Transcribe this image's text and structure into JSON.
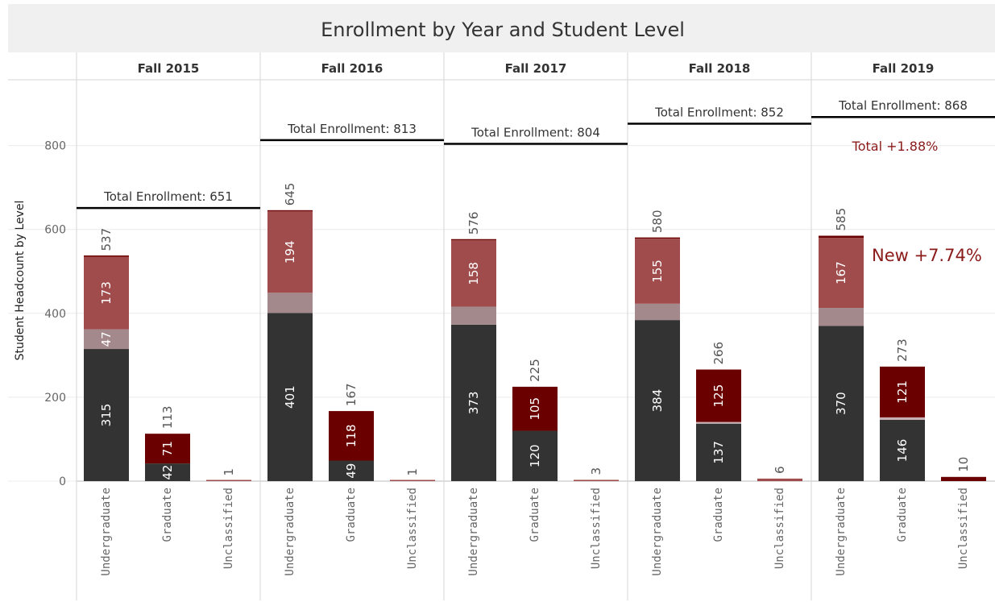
{
  "chart_data": {
    "type": "bar",
    "title": "Enrollment by Year and Student Level",
    "ylabel": "Student Headcount by Level",
    "ylim": [
      0,
      950
    ],
    "yticks": [
      0,
      200,
      400,
      600,
      800
    ],
    "grid": true,
    "levels": [
      "Undergraduate",
      "Graduate",
      "Unclassified"
    ],
    "colors": {
      "continuing": "#333333",
      "transfer": "#a4898c",
      "new_undergrad": "#a04c4c",
      "new_grad": "#6b0000",
      "graduate_mid": "#c9b0b2",
      "unclassified": "#a04c4c"
    },
    "panels": [
      {
        "year": "Fall 2015",
        "total_enrollment": 651,
        "total_label": "Total Enrollment: 651",
        "bars": [
          {
            "level": "Undergraduate",
            "total": 537,
            "segments": [
              {
                "value": 315,
                "label": "315",
                "role": "continuing"
              },
              {
                "value": 47,
                "label": "47",
                "role": "transfer"
              },
              {
                "value": 173,
                "label": "173",
                "role": "new_undergrad"
              },
              {
                "value": 2,
                "label": "",
                "role": "new_grad"
              }
            ]
          },
          {
            "level": "Graduate",
            "total": 113,
            "segments": [
              {
                "value": 42,
                "label": "42",
                "role": "continuing"
              },
              {
                "value": 71,
                "label": "71",
                "role": "new_grad"
              }
            ]
          },
          {
            "level": "Unclassified",
            "total": 1,
            "segments": [
              {
                "value": 1,
                "label": "",
                "role": "unclassified"
              }
            ]
          }
        ]
      },
      {
        "year": "Fall 2016",
        "total_enrollment": 813,
        "total_label": "Total Enrollment: 813",
        "bars": [
          {
            "level": "Undergraduate",
            "total": 645,
            "segments": [
              {
                "value": 401,
                "label": "401",
                "role": "continuing"
              },
              {
                "value": 48,
                "label": "",
                "role": "transfer"
              },
              {
                "value": 194,
                "label": "194",
                "role": "new_undergrad"
              },
              {
                "value": 2,
                "label": "",
                "role": "new_grad"
              }
            ]
          },
          {
            "level": "Graduate",
            "total": 167,
            "segments": [
              {
                "value": 49,
                "label": "49",
                "role": "continuing"
              },
              {
                "value": 118,
                "label": "118",
                "role": "new_grad"
              }
            ]
          },
          {
            "level": "Unclassified",
            "total": 1,
            "segments": [
              {
                "value": 1,
                "label": "",
                "role": "unclassified"
              }
            ]
          }
        ]
      },
      {
        "year": "Fall 2017",
        "total_enrollment": 804,
        "total_label": "Total Enrollment: 804",
        "bars": [
          {
            "level": "Undergraduate",
            "total": 576,
            "segments": [
              {
                "value": 373,
                "label": "373",
                "role": "continuing"
              },
              {
                "value": 43,
                "label": "",
                "role": "transfer"
              },
              {
                "value": 158,
                "label": "158",
                "role": "new_undergrad"
              },
              {
                "value": 2,
                "label": "",
                "role": "new_grad"
              }
            ]
          },
          {
            "level": "Graduate",
            "total": 225,
            "segments": [
              {
                "value": 120,
                "label": "120",
                "role": "continuing"
              },
              {
                "value": 105,
                "label": "105",
                "role": "new_grad"
              }
            ]
          },
          {
            "level": "Unclassified",
            "total": 3,
            "segments": [
              {
                "value": 3,
                "label": "",
                "role": "unclassified"
              }
            ]
          }
        ]
      },
      {
        "year": "Fall 2018",
        "total_enrollment": 852,
        "total_label": "Total Enrollment: 852",
        "bars": [
          {
            "level": "Undergraduate",
            "total": 580,
            "segments": [
              {
                "value": 384,
                "label": "384",
                "role": "continuing"
              },
              {
                "value": 39,
                "label": "",
                "role": "transfer"
              },
              {
                "value": 155,
                "label": "155",
                "role": "new_undergrad"
              },
              {
                "value": 2,
                "label": "",
                "role": "new_grad"
              }
            ]
          },
          {
            "level": "Graduate",
            "total": 266,
            "segments": [
              {
                "value": 137,
                "label": "137",
                "role": "continuing"
              },
              {
                "value": 4,
                "label": "",
                "role": "graduate_mid"
              },
              {
                "value": 125,
                "label": "125",
                "role": "new_grad"
              }
            ]
          },
          {
            "level": "Unclassified",
            "total": 6,
            "segments": [
              {
                "value": 6,
                "label": "",
                "role": "unclassified"
              }
            ]
          }
        ]
      },
      {
        "year": "Fall 2019",
        "total_enrollment": 868,
        "total_label": "Total Enrollment: 868",
        "annotation_total": "Total +1.88%",
        "annotation_new": "New +7.74%",
        "bars": [
          {
            "level": "Undergraduate",
            "total": 585,
            "segments": [
              {
                "value": 370,
                "label": "370",
                "role": "continuing"
              },
              {
                "value": 43,
                "label": "",
                "role": "transfer"
              },
              {
                "value": 167,
                "label": "167",
                "role": "new_undergrad"
              },
              {
                "value": 5,
                "label": "",
                "role": "new_grad"
              }
            ]
          },
          {
            "level": "Graduate",
            "total": 273,
            "segments": [
              {
                "value": 146,
                "label": "146",
                "role": "continuing"
              },
              {
                "value": 6,
                "label": "",
                "role": "graduate_mid"
              },
              {
                "value": 121,
                "label": "121",
                "role": "new_grad"
              }
            ]
          },
          {
            "level": "Unclassified",
            "total": 10,
            "segments": [
              {
                "value": 10,
                "label": "",
                "role": "new_grad"
              }
            ]
          }
        ]
      }
    ]
  }
}
